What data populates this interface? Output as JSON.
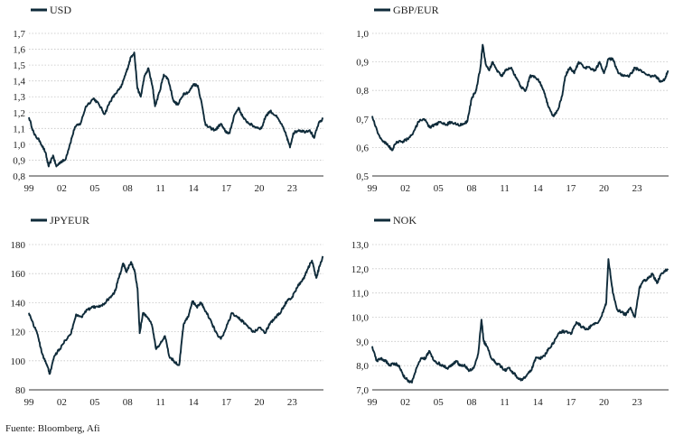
{
  "source": "Fuente: Bloomberg, Afi",
  "line_color": "#0f2b3a",
  "chart_data": [
    {
      "type": "line",
      "title": "USD",
      "legend": "top-left",
      "grid": true,
      "x_ticks": [
        "99",
        "02",
        "05",
        "08",
        "11",
        "14",
        "17",
        "20",
        "23"
      ],
      "y_ticks": [
        "1,7",
        "1,6",
        "1,5",
        "1,4",
        "1,3",
        "1,2",
        "1,1",
        "1,0",
        "0,9",
        "0,8"
      ],
      "ylim": [
        0.8,
        1.7
      ],
      "series": [
        {
          "name": "USD",
          "x": [
            1999.0,
            1999.5,
            2000.0,
            2000.5,
            2000.8,
            2001.2,
            2001.5,
            2001.9,
            2002.3,
            2002.7,
            2003.2,
            2003.7,
            2004.2,
            2004.9,
            2005.4,
            2005.9,
            2006.4,
            2006.9,
            2007.4,
            2007.9,
            2008.3,
            2008.6,
            2008.9,
            2009.2,
            2009.5,
            2009.9,
            2010.3,
            2010.5,
            2010.9,
            2011.3,
            2011.7,
            2012.2,
            2012.6,
            2013.1,
            2013.6,
            2014.0,
            2014.4,
            2014.8,
            2015.1,
            2015.6,
            2016.0,
            2016.5,
            2016.9,
            2017.3,
            2017.7,
            2018.1,
            2018.6,
            2019.1,
            2019.6,
            2020.2,
            2020.6,
            2021.0,
            2021.5,
            2022.0,
            2022.5,
            2022.8,
            2023.1,
            2023.6,
            2024.1,
            2024.6,
            2025.0,
            2025.4,
            2025.8
          ],
          "values": [
            1.17,
            1.06,
            1.02,
            0.95,
            0.86,
            0.93,
            0.86,
            0.89,
            0.9,
            0.99,
            1.11,
            1.13,
            1.24,
            1.29,
            1.25,
            1.19,
            1.27,
            1.32,
            1.36,
            1.46,
            1.55,
            1.58,
            1.35,
            1.3,
            1.42,
            1.48,
            1.35,
            1.24,
            1.33,
            1.44,
            1.41,
            1.27,
            1.25,
            1.32,
            1.33,
            1.38,
            1.37,
            1.24,
            1.12,
            1.1,
            1.09,
            1.13,
            1.08,
            1.07,
            1.18,
            1.23,
            1.16,
            1.13,
            1.11,
            1.1,
            1.18,
            1.21,
            1.18,
            1.13,
            1.05,
            0.98,
            1.07,
            1.09,
            1.08,
            1.09,
            1.04,
            1.13,
            1.16
          ]
        }
      ]
    },
    {
      "type": "line",
      "title": "GBP/EUR",
      "legend": "top-left",
      "grid": true,
      "x_ticks": [
        "99",
        "02",
        "05",
        "08",
        "11",
        "14",
        "17",
        "20",
        "23"
      ],
      "y_ticks": [
        "1,0",
        "0,9",
        "0,8",
        "0,7",
        "0,6",
        "0,5"
      ],
      "ylim": [
        0.5,
        1.0
      ],
      "series": [
        {
          "name": "GBP/EUR",
          "x": [
            1999.0,
            1999.5,
            2000.0,
            2000.4,
            2000.8,
            2001.2,
            2001.7,
            2002.2,
            2002.7,
            2003.2,
            2003.7,
            2004.2,
            2004.7,
            2005.2,
            2005.7,
            2006.2,
            2006.7,
            2007.2,
            2007.6,
            2008.0,
            2008.4,
            2008.8,
            2009.0,
            2009.3,
            2009.6,
            2009.9,
            2010.3,
            2010.7,
            2011.1,
            2011.6,
            2012.1,
            2012.5,
            2012.9,
            2013.3,
            2013.7,
            2014.2,
            2014.6,
            2015.0,
            2015.4,
            2015.8,
            2016.2,
            2016.5,
            2016.9,
            2017.3,
            2017.7,
            2018.2,
            2018.7,
            2019.2,
            2019.6,
            2020.0,
            2020.4,
            2020.8,
            2021.3,
            2021.8,
            2022.3,
            2022.8,
            2023.2,
            2023.7,
            2024.2,
            2024.7,
            2025.1,
            2025.5,
            2025.8
          ],
          "values": [
            0.71,
            0.65,
            0.62,
            0.61,
            0.59,
            0.62,
            0.62,
            0.63,
            0.65,
            0.69,
            0.7,
            0.67,
            0.68,
            0.69,
            0.68,
            0.69,
            0.68,
            0.68,
            0.69,
            0.77,
            0.8,
            0.88,
            0.96,
            0.89,
            0.87,
            0.9,
            0.87,
            0.85,
            0.87,
            0.88,
            0.84,
            0.81,
            0.8,
            0.85,
            0.85,
            0.83,
            0.79,
            0.74,
            0.71,
            0.73,
            0.78,
            0.85,
            0.88,
            0.86,
            0.9,
            0.88,
            0.88,
            0.87,
            0.9,
            0.86,
            0.91,
            0.91,
            0.86,
            0.85,
            0.85,
            0.88,
            0.87,
            0.86,
            0.85,
            0.85,
            0.83,
            0.84,
            0.87
          ]
        }
      ]
    },
    {
      "type": "line",
      "title": "JPYEUR",
      "legend": "top-left",
      "grid": true,
      "x_ticks": [
        "99",
        "02",
        "05",
        "08",
        "11",
        "14",
        "17",
        "20",
        "23"
      ],
      "y_ticks": [
        "180",
        "160",
        "140",
        "120",
        "100",
        "80"
      ],
      "ylim": [
        80,
        180
      ],
      "series": [
        {
          "name": "JPYEUR",
          "x": [
            1999.0,
            1999.4,
            1999.8,
            2000.2,
            2000.6,
            2000.9,
            2001.3,
            2001.8,
            2002.3,
            2002.8,
            2003.3,
            2003.8,
            2004.3,
            2004.8,
            2005.3,
            2005.8,
            2006.3,
            2006.8,
            2007.2,
            2007.6,
            2007.9,
            2008.3,
            2008.6,
            2008.9,
            2009.1,
            2009.4,
            2009.8,
            2010.2,
            2010.6,
            2011.0,
            2011.4,
            2011.8,
            2012.2,
            2012.7,
            2013.1,
            2013.5,
            2013.9,
            2014.3,
            2014.7,
            2015.1,
            2015.5,
            2016.0,
            2016.5,
            2017.0,
            2017.5,
            2018.0,
            2018.5,
            2019.0,
            2019.5,
            2020.0,
            2020.5,
            2021.0,
            2021.5,
            2022.0,
            2022.5,
            2023.0,
            2023.5,
            2024.0,
            2024.4,
            2024.8,
            2025.2,
            2025.5,
            2025.8
          ],
          "values": [
            133,
            125,
            118,
            105,
            98,
            91,
            103,
            108,
            114,
            118,
            132,
            130,
            135,
            137,
            137,
            139,
            143,
            147,
            157,
            167,
            161,
            168,
            163,
            150,
            119,
            133,
            130,
            125,
            108,
            112,
            117,
            103,
            100,
            97,
            125,
            130,
            141,
            137,
            140,
            134,
            129,
            120,
            115,
            123,
            133,
            130,
            127,
            123,
            120,
            123,
            119,
            126,
            130,
            134,
            141,
            144,
            151,
            156,
            163,
            169,
            157,
            165,
            172
          ]
        }
      ]
    },
    {
      "type": "line",
      "title": "NOK",
      "legend": "top-left",
      "grid": true,
      "x_ticks": [
        "99",
        "02",
        "05",
        "08",
        "11",
        "14",
        "17",
        "20",
        "23"
      ],
      "y_ticks": [
        "13,0",
        "12,0",
        "11,0",
        "10,0",
        "9,0",
        "8,0",
        "7,0"
      ],
      "ylim": [
        7.0,
        13.0
      ],
      "series": [
        {
          "name": "NOK",
          "x": [
            1999.0,
            1999.4,
            1999.8,
            2000.2,
            2000.6,
            2001.0,
            2001.4,
            2001.8,
            2002.2,
            2002.6,
            2003.0,
            2003.4,
            2003.8,
            2004.2,
            2004.6,
            2005.0,
            2005.4,
            2005.8,
            2006.2,
            2006.6,
            2007.0,
            2007.4,
            2007.8,
            2008.2,
            2008.6,
            2008.9,
            2009.1,
            2009.4,
            2009.8,
            2010.2,
            2010.6,
            2011.0,
            2011.4,
            2011.8,
            2012.2,
            2012.6,
            2013.0,
            2013.4,
            2013.8,
            2014.2,
            2014.6,
            2015.0,
            2015.5,
            2016.0,
            2016.5,
            2017.0,
            2017.5,
            2018.0,
            2018.5,
            2019.0,
            2019.5,
            2019.9,
            2020.2,
            2020.4,
            2020.8,
            2021.2,
            2021.6,
            2022.0,
            2022.4,
            2022.8,
            2023.2,
            2023.6,
            2024.0,
            2024.4,
            2024.8,
            2025.2,
            2025.8
          ],
          "values": [
            8.8,
            8.2,
            8.3,
            8.2,
            8.0,
            8.1,
            8.0,
            7.6,
            7.4,
            7.3,
            7.9,
            8.3,
            8.3,
            8.6,
            8.2,
            8.1,
            8.0,
            7.9,
            8.0,
            8.2,
            8.0,
            8.0,
            7.8,
            7.9,
            8.5,
            9.9,
            9.0,
            8.8,
            8.3,
            8.1,
            8.0,
            7.8,
            7.9,
            7.7,
            7.5,
            7.4,
            7.6,
            7.8,
            8.3,
            8.3,
            8.4,
            8.7,
            9.0,
            9.4,
            9.4,
            9.3,
            9.8,
            9.6,
            9.5,
            9.7,
            9.8,
            10.2,
            10.6,
            12.4,
            11.0,
            10.3,
            10.2,
            10.1,
            10.4,
            10.0,
            11.2,
            11.5,
            11.6,
            11.8,
            11.4,
            11.8,
            12.0
          ]
        }
      ]
    }
  ]
}
